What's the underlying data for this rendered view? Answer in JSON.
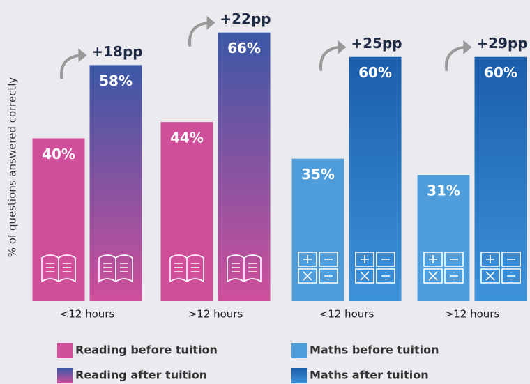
{
  "chart_data": {
    "type": "bar",
    "y_axis_label": "% of questions answered correctly",
    "categories": [
      "<12 hours",
      ">12 hours",
      "<12 hours",
      ">12 hours"
    ],
    "annotations": [
      "+18pp",
      "+22pp",
      "+25pp",
      "+29pp"
    ],
    "series": [
      {
        "name": "Reading before tuition",
        "color": "#cf4f9b",
        "icon": "book",
        "values": [
          40,
          44,
          null,
          null
        ],
        "value_labels": [
          "40%",
          "44%",
          null,
          null
        ]
      },
      {
        "name": "Reading after tuition",
        "color": [
          "#3b58a6",
          "#cf4f9b"
        ],
        "icon": "book",
        "values": [
          58,
          66,
          null,
          null
        ],
        "value_labels": [
          "58%",
          "66%",
          null,
          null
        ]
      },
      {
        "name": "Maths before tuition",
        "color": "#4f9edb",
        "icon": "maths",
        "values": [
          null,
          null,
          35,
          31
        ],
        "value_labels": [
          null,
          null,
          "35%",
          "31%"
        ]
      },
      {
        "name": "Maths after tuition",
        "color": [
          "#1a5dab",
          "#3d93da"
        ],
        "icon": "maths",
        "values": [
          null,
          null,
          60,
          60
        ],
        "value_labels": [
          null,
          null,
          "60%",
          "60%"
        ]
      }
    ],
    "ylim": [
      0,
      74
    ]
  }
}
